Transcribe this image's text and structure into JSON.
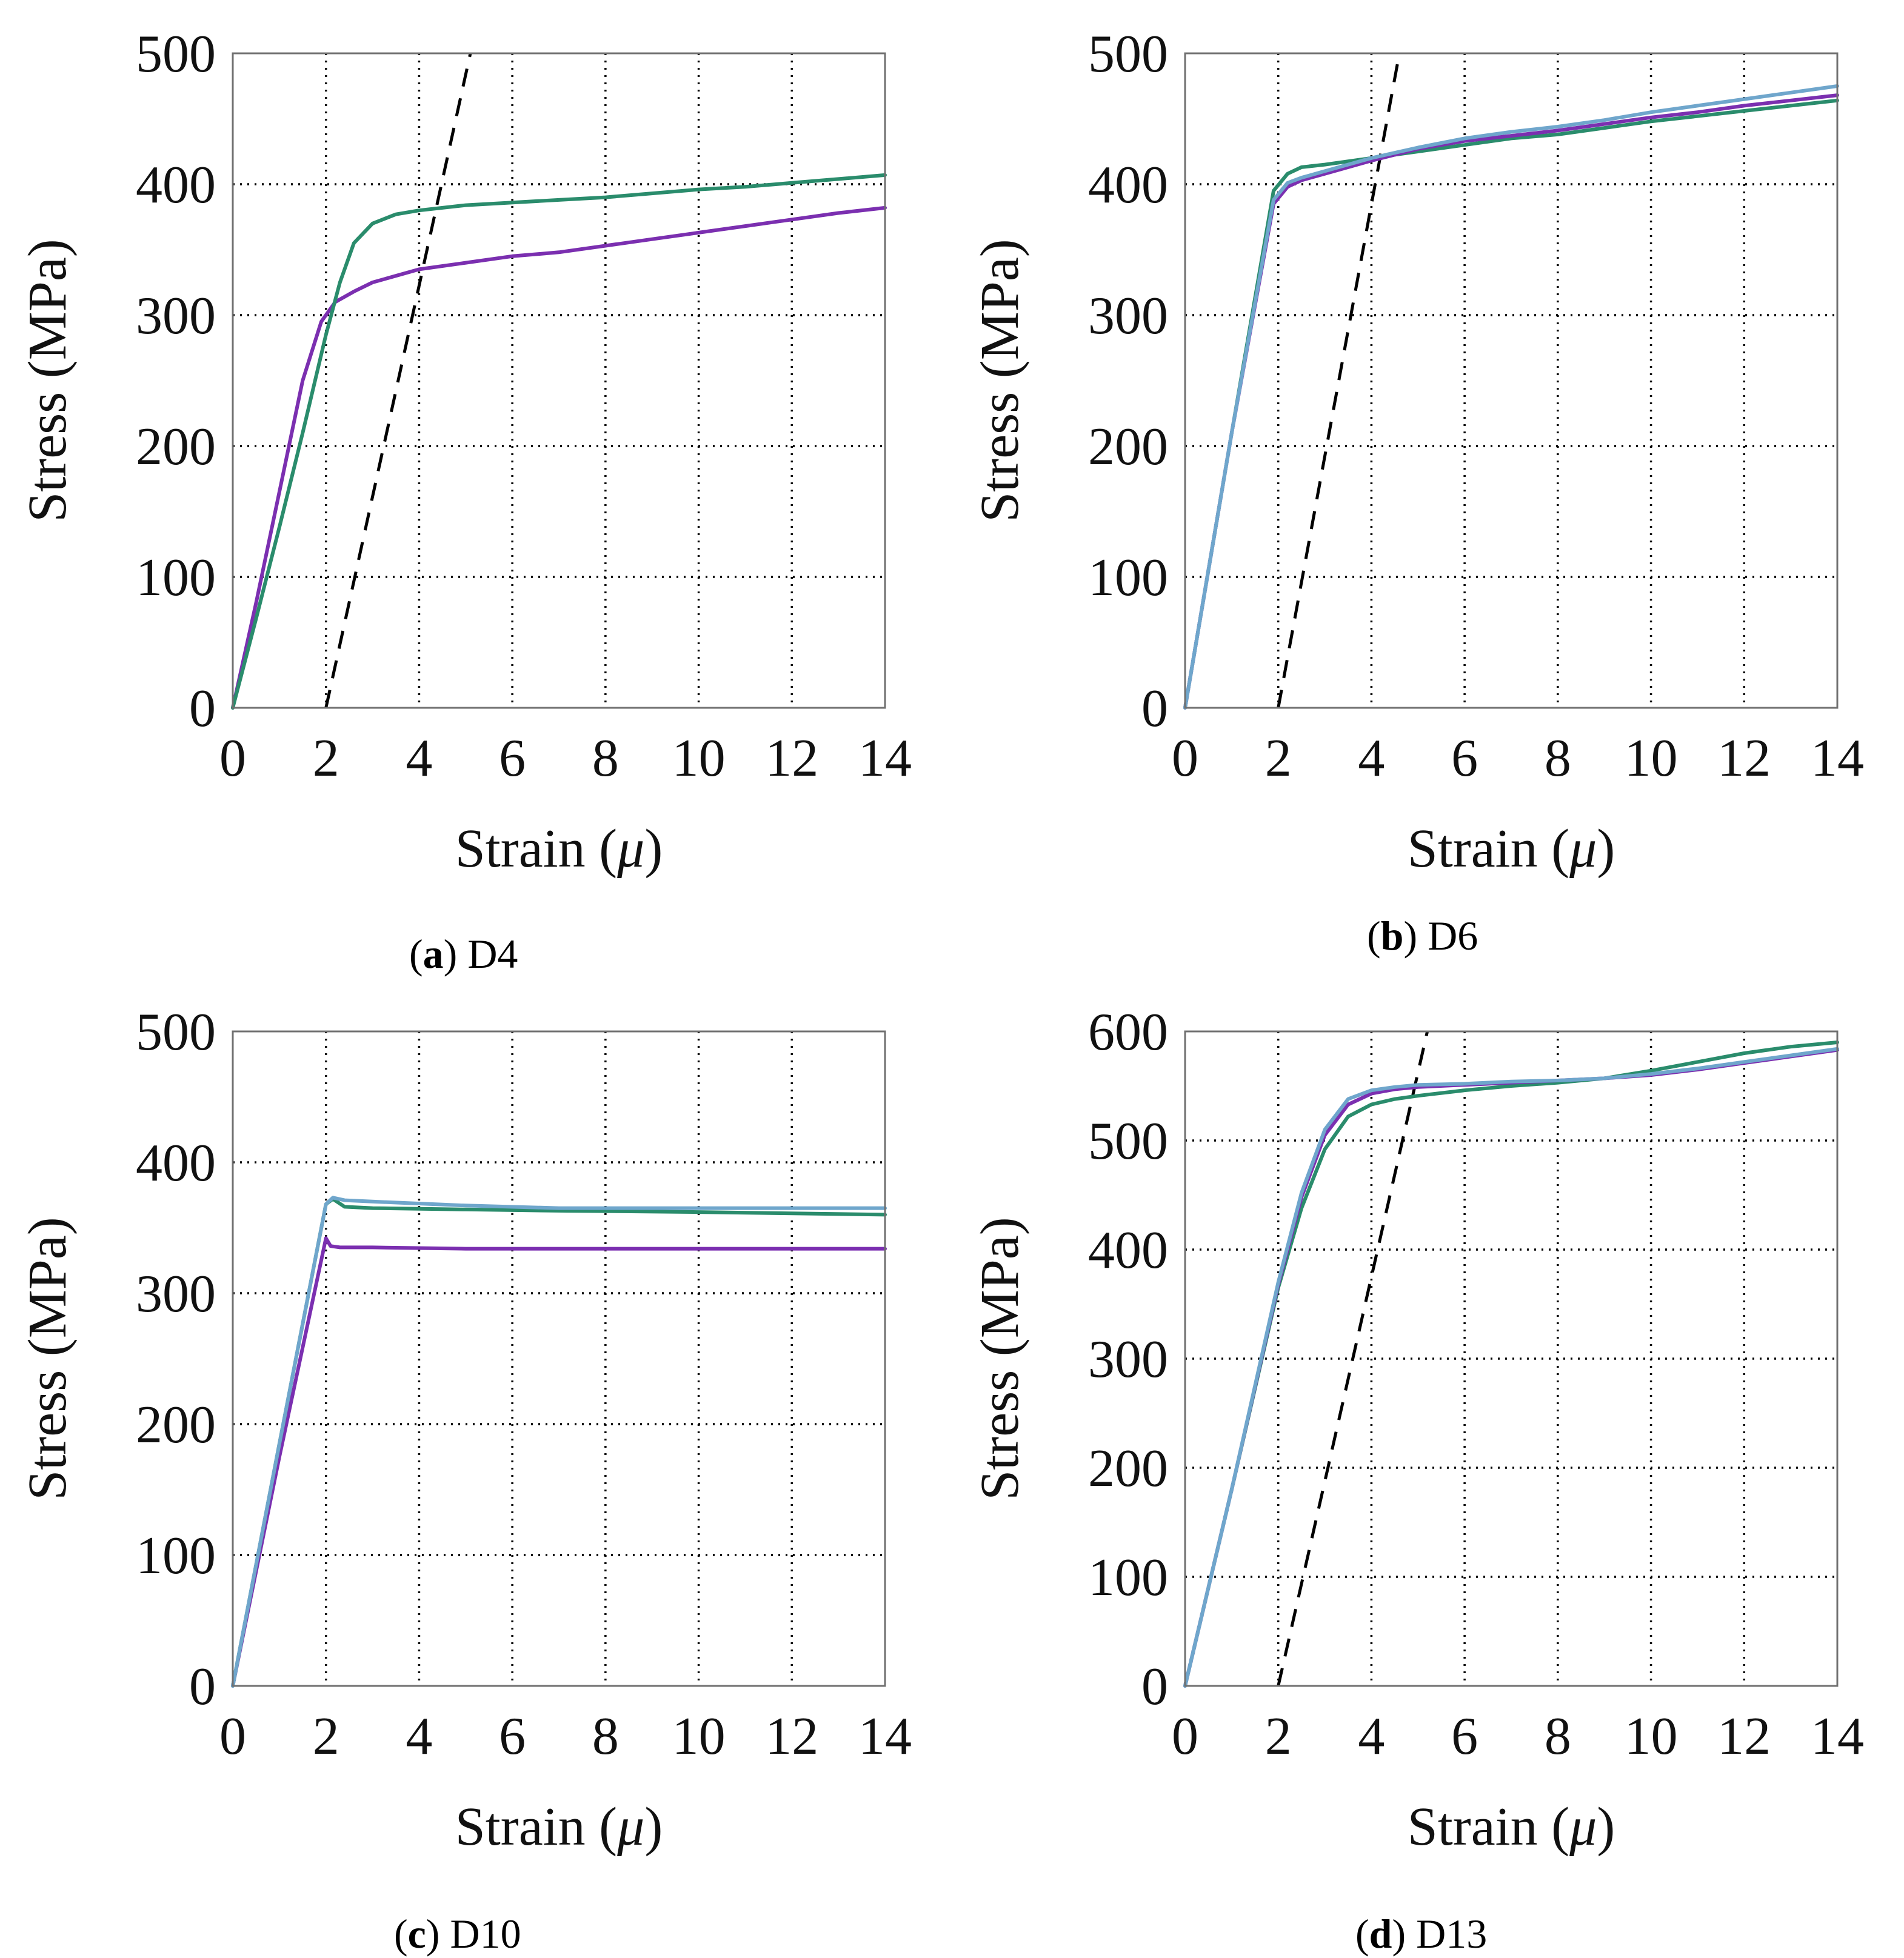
{
  "colors": {
    "purple": "#7b2fb0",
    "green": "#2a8c6c",
    "blue": "#6fa6cc"
  },
  "chart_data": [
    {
      "type": "line",
      "id": "a",
      "caption_letter": "a",
      "caption_name": "D4",
      "xlabel_text": "Strain (",
      "xlabel_symbol": "μ",
      "xlabel_end": ")",
      "ylabel": "Stress (MPa)",
      "xlim": [
        0,
        14
      ],
      "ylim": [
        0,
        500
      ],
      "xticks": [
        0,
        2,
        4,
        6,
        8,
        10,
        12,
        14
      ],
      "yticks": [
        0,
        100,
        200,
        300,
        400,
        500
      ],
      "series": [
        {
          "name": "purple",
          "color": "#7b2fb0",
          "x": [
            0,
            0.5,
            1,
            1.5,
            1.9,
            2.2,
            2.6,
            3,
            3.5,
            4,
            5,
            6,
            7,
            8,
            9,
            10,
            11,
            12,
            13,
            14
          ],
          "y": [
            0,
            80,
            165,
            250,
            295,
            310,
            318,
            325,
            330,
            335,
            340,
            345,
            348,
            353,
            358,
            363,
            368,
            373,
            378,
            382
          ]
        },
        {
          "name": "green",
          "color": "#2a8c6c",
          "x": [
            0,
            0.5,
            1,
            1.5,
            2,
            2.3,
            2.6,
            3,
            3.5,
            4,
            5,
            6,
            7,
            8,
            9,
            10,
            11,
            12,
            13,
            14
          ],
          "y": [
            0,
            68,
            138,
            210,
            285,
            325,
            355,
            370,
            377,
            380,
            384,
            386,
            388,
            390,
            393,
            396,
            398,
            401,
            404,
            407
          ]
        }
      ],
      "reference_line": {
        "x": [
          2,
          5.1
        ],
        "y": [
          0,
          500
        ]
      }
    },
    {
      "type": "line",
      "id": "b",
      "caption_letter": "b",
      "caption_name": "D6",
      "xlabel_text": "Strain (",
      "xlabel_symbol": "μ",
      "xlabel_end": ")",
      "ylabel": "Stress (MPa)",
      "xlim": [
        0,
        14
      ],
      "ylim": [
        0,
        500
      ],
      "xticks": [
        0,
        2,
        4,
        6,
        8,
        10,
        12,
        14
      ],
      "yticks": [
        0,
        100,
        200,
        300,
        400,
        500
      ],
      "series": [
        {
          "name": "green",
          "color": "#2a8c6c",
          "x": [
            0,
            1,
            1.9,
            2.2,
            2.5,
            3,
            4,
            5,
            6,
            7,
            8,
            9,
            10,
            11,
            12,
            13,
            14
          ],
          "y": [
            0,
            210,
            395,
            408,
            413,
            415,
            420,
            425,
            430,
            435,
            438,
            443,
            448,
            452,
            456,
            460,
            464
          ]
        },
        {
          "name": "purple",
          "color": "#7b2fb0",
          "x": [
            0,
            1,
            1.9,
            2.2,
            2.5,
            3,
            4,
            5,
            6,
            7,
            8,
            9,
            10,
            11,
            12,
            13,
            14
          ],
          "y": [
            0,
            210,
            385,
            398,
            403,
            408,
            418,
            427,
            433,
            437,
            441,
            446,
            451,
            455,
            460,
            464,
            468
          ]
        },
        {
          "name": "blue",
          "color": "#6fa6cc",
          "x": [
            0,
            1,
            1.9,
            2.2,
            2.5,
            3,
            4,
            5,
            6,
            7,
            8,
            9,
            10,
            11,
            12,
            13,
            14
          ],
          "y": [
            0,
            210,
            388,
            401,
            405,
            410,
            420,
            428,
            435,
            440,
            444,
            449,
            455,
            460,
            465,
            470,
            475
          ]
        }
      ],
      "reference_line": {
        "x": [
          2,
          4.6
        ],
        "y": [
          0,
          500
        ]
      }
    },
    {
      "type": "line",
      "id": "c",
      "caption_letter": "c",
      "caption_name": "D10",
      "xlabel_text": "Strain (",
      "xlabel_symbol": "μ",
      "xlabel_end": ")",
      "ylabel": "Stress (MPa)",
      "xlim": [
        0,
        14
      ],
      "ylim": [
        0,
        500
      ],
      "xticks": [
        0,
        2,
        4,
        6,
        8,
        10,
        12,
        14
      ],
      "yticks": [
        0,
        100,
        200,
        300,
        400,
        500
      ],
      "series": [
        {
          "name": "purple",
          "color": "#7b2fb0",
          "x": [
            0,
            1,
            2,
            2.1,
            2.3,
            3,
            5,
            7,
            10,
            14
          ],
          "y": [
            0,
            175,
            342,
            336,
            335,
            335,
            334,
            334,
            334,
            334
          ]
        },
        {
          "name": "green",
          "color": "#2a8c6c",
          "x": [
            0,
            1,
            2,
            2.15,
            2.4,
            3,
            5,
            7,
            10,
            14
          ],
          "y": [
            0,
            185,
            368,
            372,
            366,
            365,
            364,
            363,
            362,
            360
          ]
        },
        {
          "name": "blue",
          "color": "#6fa6cc",
          "x": [
            0,
            1,
            2,
            2.15,
            2.4,
            3,
            5,
            7,
            10,
            14
          ],
          "y": [
            0,
            185,
            368,
            373,
            371,
            370,
            367,
            365,
            365,
            365
          ]
        }
      ],
      "reference_line": null
    },
    {
      "type": "line",
      "id": "d",
      "caption_letter": "d",
      "caption_name": "D13",
      "xlabel_text": "Strain (",
      "xlabel_symbol": "μ",
      "xlabel_end": ")",
      "ylabel": "Stress (MPa)",
      "xlim": [
        0,
        14
      ],
      "ylim": [
        0,
        600
      ],
      "xticks": [
        0,
        2,
        4,
        6,
        8,
        10,
        12,
        14
      ],
      "yticks": [
        0,
        100,
        200,
        300,
        400,
        500,
        600
      ],
      "series": [
        {
          "name": "green",
          "color": "#2a8c6c",
          "x": [
            0,
            1,
            2,
            2.5,
            3,
            3.5,
            4,
            4.5,
            5,
            6,
            7,
            8,
            9,
            10,
            11,
            12,
            13,
            14
          ],
          "y": [
            0,
            180,
            365,
            438,
            492,
            522,
            533,
            538,
            541,
            546,
            550,
            553,
            557,
            564,
            572,
            580,
            586,
            590
          ]
        },
        {
          "name": "purple",
          "color": "#7b2fb0",
          "x": [
            0,
            1,
            2,
            2.5,
            3,
            3.5,
            4,
            4.5,
            5,
            6,
            7,
            8,
            9,
            10,
            11,
            12,
            13,
            14
          ],
          "y": [
            0,
            180,
            368,
            448,
            505,
            533,
            543,
            547,
            549,
            551,
            553,
            555,
            557,
            560,
            565,
            571,
            577,
            583
          ]
        },
        {
          "name": "blue",
          "color": "#6fa6cc",
          "x": [
            0,
            1,
            2,
            2.5,
            3,
            3.5,
            4,
            4.5,
            5,
            6,
            7,
            8,
            9,
            10,
            11,
            12,
            13,
            14
          ],
          "y": [
            0,
            180,
            370,
            452,
            510,
            538,
            546,
            549,
            551,
            552,
            554,
            555,
            557,
            561,
            566,
            572,
            578,
            584
          ]
        }
      ],
      "reference_line": {
        "x": [
          2,
          5.2
        ],
        "y": [
          0,
          600
        ]
      }
    }
  ]
}
